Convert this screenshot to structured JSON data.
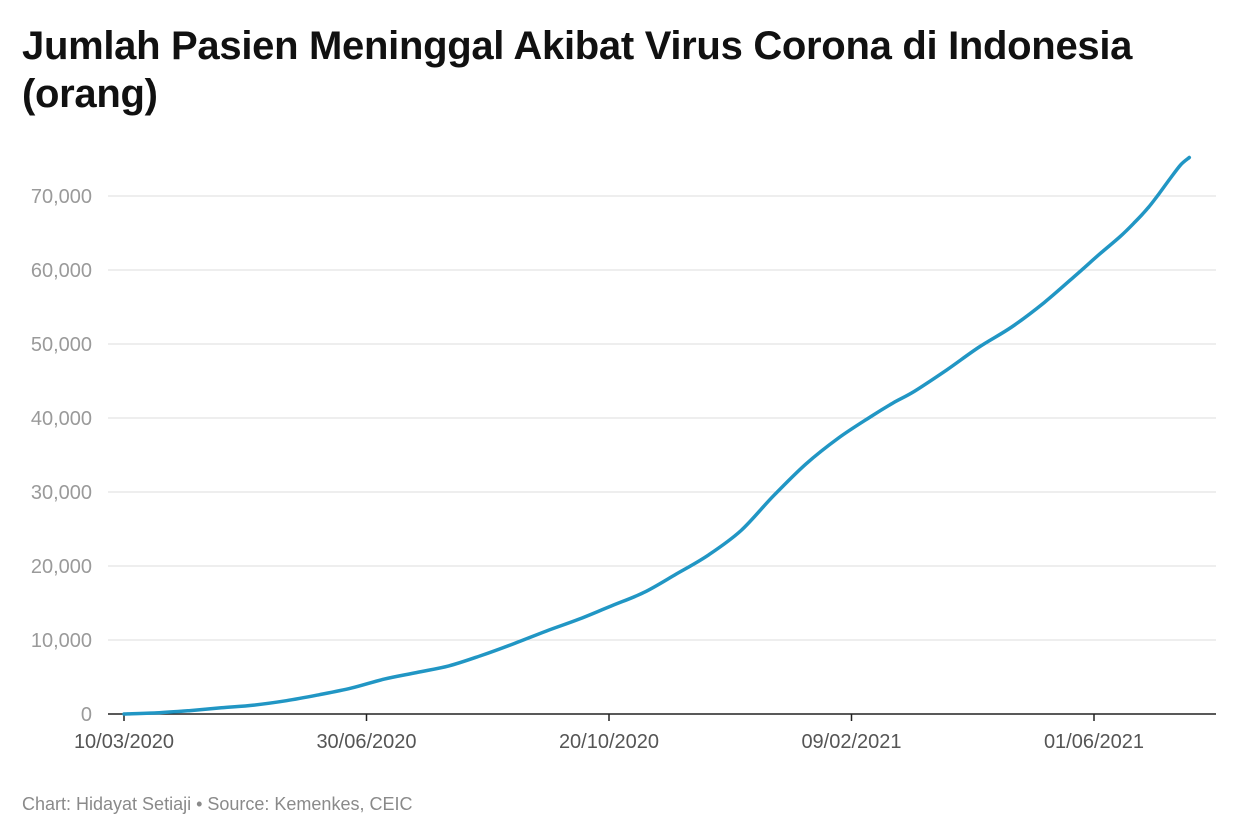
{
  "chart_data": {
    "type": "line",
    "title": "Jumlah Pasien Meninggal Akibat Virus Corona di Indonesia (orang)",
    "xlabel": "",
    "ylabel": "",
    "ylim": [
      0,
      75000
    ],
    "yticks": [
      0,
      10000,
      20000,
      30000,
      40000,
      50000,
      60000,
      70000
    ],
    "ytick_labels": [
      "0",
      "10,000",
      "20,000",
      "30,000",
      "40,000",
      "50,000",
      "60,000",
      "70,000"
    ],
    "xlim_day": [
      0,
      492
    ],
    "xticks": [
      {
        "label": "10/03/2020",
        "day": 0
      },
      {
        "label": "30/06/2020",
        "day": 112
      },
      {
        "label": "20/10/2020",
        "day": 224
      },
      {
        "label": "09/02/2021",
        "day": 336
      },
      {
        "label": "01/06/2021",
        "day": 448
      }
    ],
    "grid": true,
    "color": "#2196c4",
    "series": [
      {
        "name": "Jumlah Pasien Meninggal",
        "day": [
          0,
          15,
          30,
          45,
          60,
          75,
          90,
          105,
          120,
          135,
          150,
          165,
          180,
          195,
          210,
          225,
          240,
          255,
          270,
          285,
          300,
          315,
          330,
          345,
          355,
          365,
          380,
          395,
          410,
          425,
          440,
          450,
          460,
          467,
          473,
          478,
          483,
          488,
          492
        ],
        "values": [
          0,
          150,
          450,
          850,
          1200,
          1800,
          2600,
          3500,
          4700,
          5600,
          6500,
          7900,
          9500,
          11200,
          12800,
          14600,
          16400,
          18900,
          21500,
          24800,
          29500,
          33800,
          37300,
          40200,
          42000,
          43600,
          46500,
          49600,
          52300,
          55600,
          59400,
          62000,
          64500,
          66500,
          68400,
          70300,
          72300,
          74200,
          75200
        ]
      }
    ]
  },
  "footer": {
    "credit": "Chart: Hidayat Setiaji • Source: Kemenkes, CEIC"
  }
}
